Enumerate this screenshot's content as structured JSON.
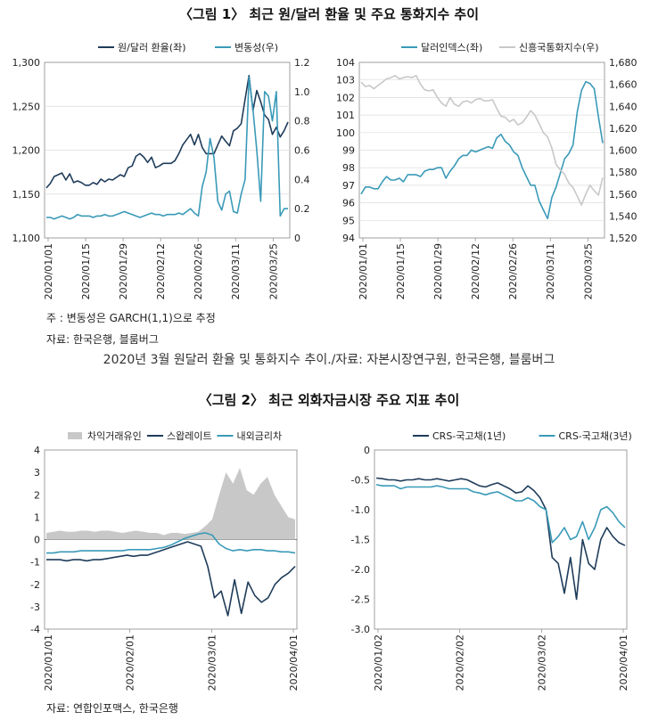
{
  "figure1": {
    "title": "〈그림 1〉 최근 원/달러 환율 및 주요 통화지수 추이",
    "note": "주   : 변동성은 GARCH(1,1)으로 추정",
    "source": "자료: 한국은행, 블룸버그"
  },
  "caption": "2020년 3월 원달러 환율 및 통화지수 추이./자료: 자본시장연구원, 한국은행, 블룸버그",
  "figure2": {
    "title": "〈그림 2〉 최근 외화자금시장 주요 지표 추이",
    "source": "자료: 연합인포맥스, 한국은행"
  },
  "colors": {
    "dark": "#1f3c5a",
    "light": "#3a9ab8",
    "gray": "#c8c8c8",
    "grid": "#d9d9d9"
  },
  "chart_data": [
    {
      "id": "fx-rate",
      "type": "line",
      "x_ticks": [
        "2020/01/01",
        "2020/01/15",
        "2020/01/29",
        "2020/02/12",
        "2020/02/26",
        "2020/03/11",
        "2020/03/25"
      ],
      "ylim": [
        1100,
        1300
      ],
      "y_ticks": [
        "1,100",
        "1,150",
        "1,200",
        "1,250",
        "1,300"
      ],
      "y2lim": [
        0,
        1.2
      ],
      "y2_ticks": [
        "0",
        "0.2",
        "0.4",
        "0.6",
        "0.8",
        "1.0",
        "1.2"
      ],
      "grid": true,
      "legend": "top",
      "series": [
        {
          "name": "원/달러 환율(좌)",
          "axis": "left",
          "color": "#1f3c5a",
          "values": [
            1157,
            1162,
            1170,
            1172,
            1174,
            1166,
            1173,
            1163,
            1165,
            1163,
            1160,
            1160,
            1163,
            1161,
            1167,
            1164,
            1167,
            1166,
            1169,
            1172,
            1170,
            1180,
            1182,
            1193,
            1196,
            1192,
            1186,
            1192,
            1180,
            1182,
            1185,
            1185,
            1185,
            1188,
            1196,
            1206,
            1212,
            1218,
            1206,
            1218,
            1203,
            1196,
            1196,
            1196,
            1206,
            1216,
            1210,
            1205,
            1222,
            1225,
            1230,
            1258,
            1285,
            1245,
            1268,
            1255,
            1240,
            1235,
            1218,
            1226,
            1215,
            1222,
            1232
          ]
        },
        {
          "name": "변동성(우)",
          "axis": "right",
          "color": "#3a9ab8",
          "values": [
            0.14,
            0.14,
            0.13,
            0.14,
            0.15,
            0.14,
            0.13,
            0.14,
            0.16,
            0.15,
            0.15,
            0.15,
            0.14,
            0.15,
            0.15,
            0.16,
            0.15,
            0.15,
            0.16,
            0.17,
            0.18,
            0.17,
            0.16,
            0.15,
            0.14,
            0.15,
            0.16,
            0.17,
            0.16,
            0.16,
            0.15,
            0.16,
            0.16,
            0.16,
            0.17,
            0.16,
            0.18,
            0.2,
            0.17,
            0.15,
            0.35,
            0.45,
            0.68,
            0.55,
            0.25,
            0.19,
            0.3,
            0.32,
            0.18,
            0.17,
            0.3,
            0.4,
            1.1,
            0.88,
            0.6,
            0.25,
            1.0,
            0.97,
            0.8,
            1.0,
            0.15,
            0.2,
            0.2
          ]
        }
      ]
    },
    {
      "id": "currency-index",
      "type": "line",
      "x_ticks": [
        "2020/01/01",
        "2020/01/15",
        "2020/01/29",
        "2020/02/12",
        "2020/02/26",
        "2020/03/11",
        "2020/03/25"
      ],
      "ylim": [
        94,
        104
      ],
      "y_ticks": [
        "94",
        "95",
        "96",
        "97",
        "98",
        "99",
        "100",
        "101",
        "102",
        "103",
        "104"
      ],
      "y2lim": [
        1520,
        1680
      ],
      "y2_ticks": [
        "1,520",
        "1,540",
        "1,560",
        "1,580",
        "1,600",
        "1,620",
        "1,640",
        "1,660",
        "1,680"
      ],
      "grid": true,
      "legend": "top",
      "series": [
        {
          "name": "달러인덱스(좌)",
          "axis": "left",
          "color": "#3a9ab8",
          "values": [
            96.5,
            96.9,
            96.9,
            96.8,
            96.8,
            97.2,
            97.5,
            97.3,
            97.3,
            97.4,
            97.2,
            97.6,
            97.6,
            97.6,
            97.5,
            97.8,
            97.9,
            97.9,
            98.0,
            98.0,
            97.4,
            97.8,
            98.1,
            98.5,
            98.7,
            98.7,
            99.0,
            98.9,
            99.0,
            99.1,
            99.2,
            99.1,
            99.7,
            99.9,
            99.5,
            99.3,
            98.9,
            98.7,
            98.0,
            97.5,
            97.0,
            97.0,
            96.1,
            95.6,
            95.1,
            96.3,
            96.9,
            97.7,
            98.5,
            98.8,
            99.3,
            101.2,
            102.4,
            102.9,
            102.8,
            102.5,
            100.9,
            99.4
          ]
        },
        {
          "name": "신흥국통화지수(우)",
          "axis": "right",
          "color": "#c8c8c8",
          "values": [
            1662,
            1658,
            1659,
            1656,
            1659,
            1662,
            1665,
            1666,
            1668,
            1665,
            1666,
            1667,
            1666,
            1668,
            1660,
            1655,
            1654,
            1655,
            1648,
            1643,
            1640,
            1648,
            1642,
            1640,
            1644,
            1645,
            1643,
            1646,
            1647,
            1645,
            1645,
            1646,
            1638,
            1631,
            1630,
            1626,
            1628,
            1623,
            1625,
            1630,
            1636,
            1632,
            1624,
            1616,
            1612,
            1602,
            1587,
            1582,
            1578,
            1570,
            1566,
            1558,
            1550,
            1560,
            1568,
            1563,
            1559,
            1575
          ]
        }
      ]
    },
    {
      "id": "swap-rate",
      "type": "line",
      "x_ticks": [
        "2020/01/01",
        "2020/02/01",
        "2020/03/01",
        "2020/04/01"
      ],
      "ylim": [
        -4,
        4
      ],
      "y_ticks": [
        "-4",
        "-3",
        "-2",
        "-1",
        "0",
        "1",
        "2",
        "3",
        "4"
      ],
      "grid": false,
      "legend": "top",
      "series": [
        {
          "name": "차익거래유인",
          "type": "area",
          "color": "#c8c8c8",
          "values": [
            0.3,
            0.35,
            0.4,
            0.35,
            0.35,
            0.4,
            0.4,
            0.35,
            0.4,
            0.4,
            0.35,
            0.3,
            0.35,
            0.4,
            0.35,
            0.3,
            0.3,
            0.2,
            0.3,
            0.3,
            0.25,
            0.3,
            0.35,
            0.6,
            0.9,
            2.0,
            3.0,
            2.5,
            3.2,
            2.2,
            2.0,
            2.5,
            2.8,
            2.0,
            1.5,
            1.0,
            0.9
          ]
        },
        {
          "name": "스왑레이트",
          "color": "#1f3c5a",
          "values": [
            -0.9,
            -0.9,
            -0.9,
            -0.95,
            -0.9,
            -0.9,
            -0.95,
            -0.9,
            -0.9,
            -0.85,
            -0.8,
            -0.75,
            -0.7,
            -0.75,
            -0.7,
            -0.7,
            -0.6,
            -0.5,
            -0.4,
            -0.3,
            -0.2,
            -0.1,
            -0.2,
            -0.3,
            -1.2,
            -2.6,
            -2.3,
            -3.4,
            -1.8,
            -3.3,
            -1.9,
            -2.5,
            -2.8,
            -2.6,
            -2.0,
            -1.7,
            -1.5,
            -1.2
          ]
        },
        {
          "name": "내외금리차",
          "color": "#3a9ab8",
          "values": [
            -0.6,
            -0.6,
            -0.55,
            -0.55,
            -0.55,
            -0.5,
            -0.5,
            -0.5,
            -0.5,
            -0.5,
            -0.5,
            -0.5,
            -0.45,
            -0.45,
            -0.45,
            -0.45,
            -0.4,
            -0.35,
            -0.25,
            -0.1,
            0.05,
            0.15,
            0.25,
            0.3,
            0.2,
            -0.2,
            -0.4,
            -0.5,
            -0.45,
            -0.5,
            -0.45,
            -0.45,
            -0.5,
            -0.5,
            -0.55,
            -0.55,
            -0.6
          ]
        }
      ]
    },
    {
      "id": "crs-rate",
      "type": "line",
      "x_ticks": [
        "2020/01/02",
        "2020/02/02",
        "2020/03/02",
        "2020/04/01"
      ],
      "ylim": [
        -3.0,
        0
      ],
      "y_ticks": [
        "-3.0",
        "-2.5",
        "-2.0",
        "-1.5",
        "-1.0",
        "-0.5",
        "0"
      ],
      "grid": false,
      "legend": "top",
      "series": [
        {
          "name": "CRS-국고채(1년)",
          "color": "#1f3c5a",
          "values": [
            -0.47,
            -0.48,
            -0.5,
            -0.5,
            -0.52,
            -0.5,
            -0.5,
            -0.48,
            -0.5,
            -0.5,
            -0.48,
            -0.5,
            -0.52,
            -0.5,
            -0.48,
            -0.5,
            -0.55,
            -0.6,
            -0.62,
            -0.58,
            -0.55,
            -0.6,
            -0.65,
            -0.72,
            -0.7,
            -0.6,
            -0.68,
            -0.8,
            -1.0,
            -1.8,
            -1.9,
            -2.4,
            -1.8,
            -2.5,
            -1.5,
            -1.9,
            -2.0,
            -1.5,
            -1.3,
            -1.45,
            -1.55,
            -1.6
          ]
        },
        {
          "name": "CRS-국고채(3년)",
          "color": "#3a9ab8",
          "values": [
            -0.58,
            -0.6,
            -0.6,
            -0.6,
            -0.65,
            -0.62,
            -0.62,
            -0.62,
            -0.62,
            -0.62,
            -0.6,
            -0.62,
            -0.65,
            -0.65,
            -0.65,
            -0.65,
            -0.7,
            -0.72,
            -0.75,
            -0.72,
            -0.7,
            -0.75,
            -0.8,
            -0.85,
            -0.85,
            -0.8,
            -0.85,
            -0.95,
            -1.0,
            -1.55,
            -1.45,
            -1.3,
            -1.5,
            -1.45,
            -1.2,
            -1.5,
            -1.3,
            -1.0,
            -0.95,
            -1.05,
            -1.2,
            -1.3
          ]
        }
      ]
    }
  ]
}
